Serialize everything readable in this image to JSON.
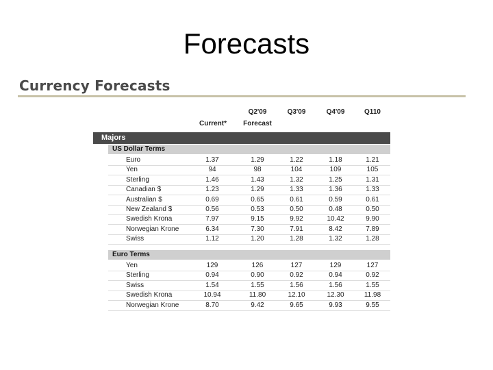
{
  "slide": {
    "title": "Forecasts"
  },
  "section": {
    "title": "Currency Forecasts"
  },
  "table": {
    "columns": [
      {
        "line1": "",
        "line2": "Current*"
      },
      {
        "line1": "Q2'09",
        "line2": "Forecast"
      },
      {
        "line1": "Q3'09",
        "line2": ""
      },
      {
        "line1": "Q4'09",
        "line2": ""
      },
      {
        "line1": "Q110",
        "line2": ""
      }
    ],
    "majors_label": "Majors",
    "groups": [
      {
        "label": "US Dollar Terms",
        "rows": [
          {
            "name": "Euro",
            "values": [
              "1.37",
              "1.29",
              "1.22",
              "1.18",
              "1.21"
            ]
          },
          {
            "name": "Yen",
            "values": [
              "94",
              "98",
              "104",
              "109",
              "105"
            ]
          },
          {
            "name": "Sterling",
            "values": [
              "1.46",
              "1.43",
              "1.32",
              "1.25",
              "1.31"
            ]
          },
          {
            "name": "Canadian $",
            "values": [
              "1.23",
              "1.29",
              "1.33",
              "1.36",
              "1.33"
            ]
          },
          {
            "name": "Australian $",
            "values": [
              "0.69",
              "0.65",
              "0.61",
              "0.59",
              "0.61"
            ]
          },
          {
            "name": "New Zealand $",
            "values": [
              "0.56",
              "0.53",
              "0.50",
              "0.48",
              "0.50"
            ]
          },
          {
            "name": "Swedish Krona",
            "values": [
              "7.97",
              "9.15",
              "9.92",
              "10.42",
              "9.90"
            ]
          },
          {
            "name": "Norwegian Krone",
            "values": [
              "6.34",
              "7.30",
              "7.91",
              "8.42",
              "7.89"
            ]
          },
          {
            "name": "Swiss",
            "values": [
              "1.12",
              "1.20",
              "1.28",
              "1.32",
              "1.28"
            ]
          }
        ]
      },
      {
        "label": "Euro Terms",
        "rows": [
          {
            "name": "Yen",
            "values": [
              "129",
              "126",
              "127",
              "129",
              "127"
            ]
          },
          {
            "name": "Sterling",
            "values": [
              "0.94",
              "0.90",
              "0.92",
              "0.94",
              "0.92"
            ]
          },
          {
            "name": "Swiss",
            "values": [
              "1.54",
              "1.55",
              "1.56",
              "1.56",
              "1.55"
            ]
          },
          {
            "name": "Swedish Krona",
            "values": [
              "10.94",
              "11.80",
              "12.10",
              "12.30",
              "11.98"
            ]
          },
          {
            "name": "Norwegian Krone",
            "values": [
              "8.70",
              "9.42",
              "9.65",
              "9.93",
              "9.55"
            ]
          }
        ]
      }
    ]
  },
  "colors": {
    "majors_bar": "#4a4a4a",
    "group_bar": "#cfcfcf",
    "rule": "#c8c2a8"
  }
}
